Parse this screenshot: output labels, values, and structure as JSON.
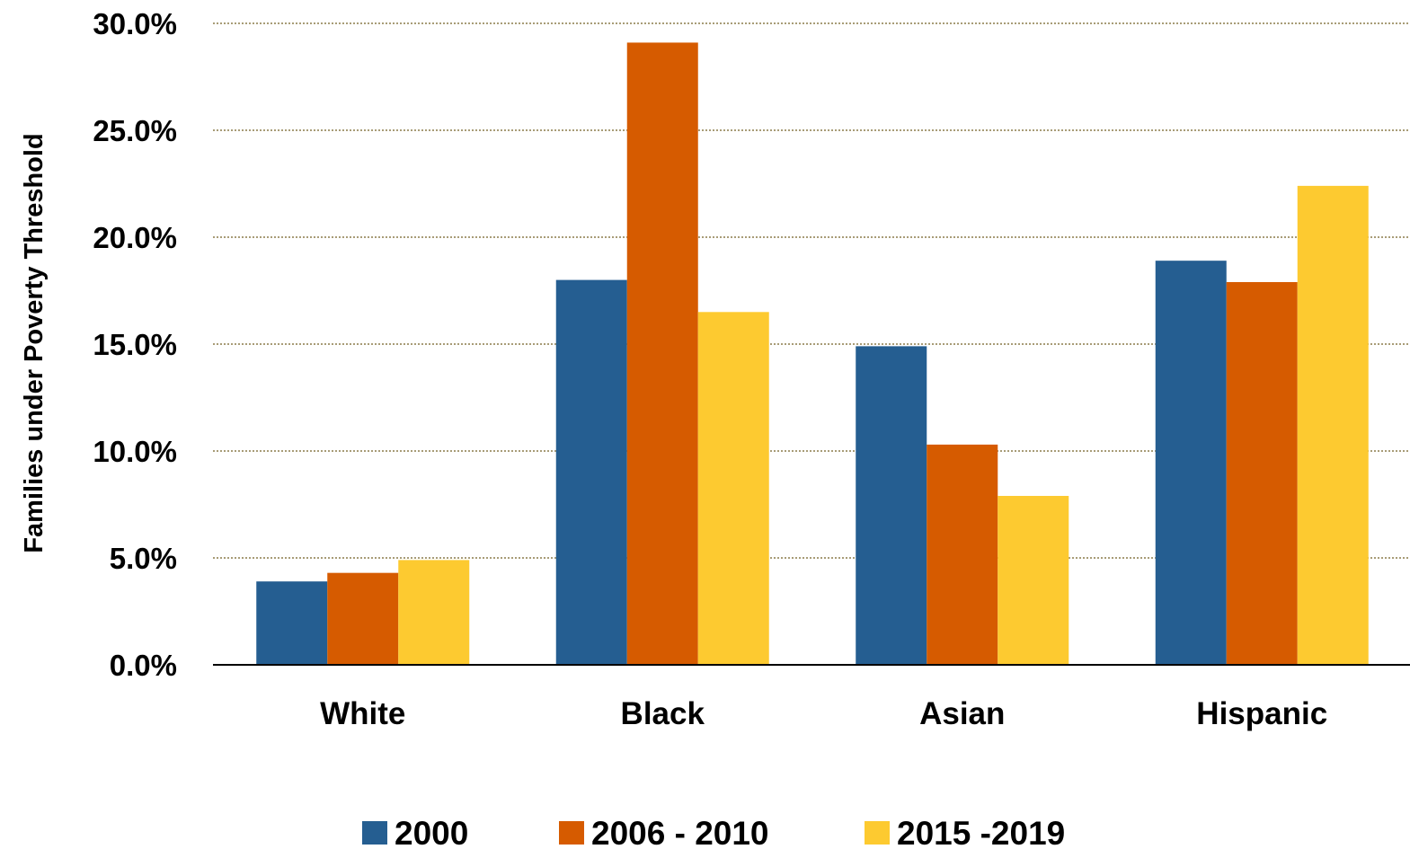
{
  "chart_data": {
    "type": "bar",
    "title": "",
    "xlabel": "",
    "ylabel": "Families under Poverty Threshold",
    "categories": [
      "White",
      "Black",
      "Asian",
      "Hispanic"
    ],
    "series": [
      {
        "name": "2000",
        "color": "#255e91",
        "values": [
          3.9,
          18.0,
          14.9,
          18.9
        ]
      },
      {
        "name": "2006 - 2010",
        "color": "#d65b00",
        "values": [
          4.3,
          29.1,
          10.3,
          17.9
        ]
      },
      {
        "name": "2015 -2019",
        "color": "#fdca30",
        "values": [
          4.9,
          16.5,
          7.9,
          22.4
        ]
      }
    ],
    "ylim": [
      0,
      30
    ],
    "yticks": [
      0,
      5,
      10,
      15,
      20,
      25,
      30
    ],
    "ytick_labels": [
      "0.0%",
      "5.0%",
      "10.0%",
      "15.0%",
      "20.0%",
      "25.0%",
      "30.0%"
    ],
    "grid": true,
    "legend_position": "bottom"
  }
}
